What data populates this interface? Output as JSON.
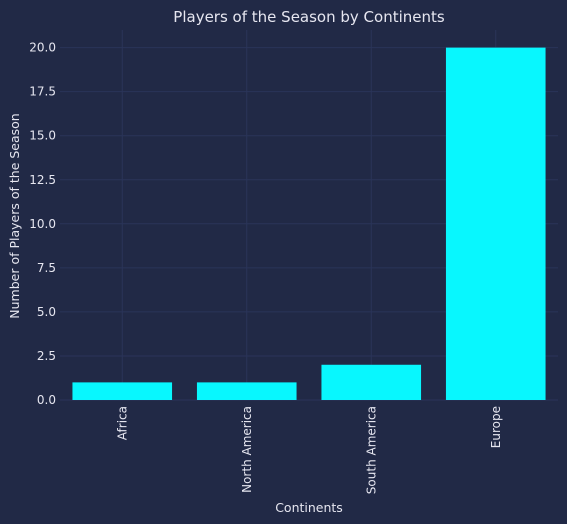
{
  "chart_data": {
    "type": "bar",
    "title": "Players of the Season by Continents",
    "xlabel": "Continents",
    "ylabel": "Number of Players of the Season",
    "categories": [
      "Africa",
      "North America",
      "South America",
      "Europe"
    ],
    "values": [
      1,
      1,
      2,
      20
    ],
    "ylim": [
      0,
      21
    ],
    "yticks": [
      "0.0",
      "2.5",
      "5.0",
      "7.5",
      "10.0",
      "12.5",
      "15.0",
      "17.5",
      "20.0"
    ],
    "grid": true,
    "bar_color": "#08f7fe",
    "background_color": "#212946",
    "grid_color": "#2a3459"
  }
}
